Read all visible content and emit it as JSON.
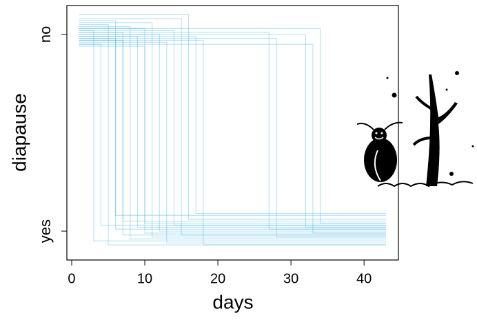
{
  "chart_data": {
    "type": "line",
    "xlabel": "days",
    "ylabel": "diapause",
    "xlim": [
      -0.66,
      44.7
    ],
    "ylim": [
      -0.147,
      1.147
    ],
    "xticks": [
      0,
      10,
      20,
      30,
      40
    ],
    "yticks": [
      {
        "value": 0,
        "label": "yes"
      },
      {
        "value": 1,
        "label": "no"
      }
    ],
    "color": "#1ba1d9",
    "line_opacity": 0.3,
    "series": [
      {
        "x": [
          1,
          3,
          3,
          43
        ],
        "values": [
          1.02,
          1.02,
          -0.05,
          -0.05
        ]
      },
      {
        "x": [
          1,
          4,
          4,
          43
        ],
        "values": [
          0.95,
          0.95,
          0.03,
          0.03
        ]
      },
      {
        "x": [
          1,
          5,
          5,
          43
        ],
        "values": [
          1.05,
          1.05,
          -0.07,
          -0.07
        ]
      },
      {
        "x": [
          1,
          6,
          6,
          43
        ],
        "values": [
          1.07,
          1.07,
          0.08,
          0.08
        ]
      },
      {
        "x": [
          1,
          6,
          6,
          43
        ],
        "values": [
          0.98,
          0.98,
          0.01,
          0.01
        ]
      },
      {
        "x": [
          1,
          7,
          7,
          43
        ],
        "values": [
          1.01,
          1.01,
          -0.02,
          -0.02
        ]
      },
      {
        "x": [
          1,
          7,
          7,
          43
        ],
        "values": [
          0.97,
          0.97,
          0.05,
          0.05
        ]
      },
      {
        "x": [
          1,
          8,
          8,
          43
        ],
        "values": [
          1.04,
          1.04,
          -0.04,
          -0.04
        ]
      },
      {
        "x": [
          1,
          9,
          9,
          43
        ],
        "values": [
          0.99,
          0.99,
          0.02,
          0.02
        ]
      },
      {
        "x": [
          1,
          10,
          10,
          43
        ],
        "values": [
          1.03,
          1.03,
          -0.01,
          -0.01
        ]
      },
      {
        "x": [
          1,
          10,
          10,
          43
        ],
        "values": [
          0.94,
          0.94,
          0.04,
          0.04
        ]
      },
      {
        "x": [
          1,
          11,
          11,
          43
        ],
        "values": [
          1.06,
          1.06,
          -0.03,
          -0.03
        ]
      },
      {
        "x": [
          1,
          12,
          12,
          43
        ],
        "values": [
          1.0,
          1.0,
          0.0,
          0.0
        ]
      },
      {
        "x": [
          1,
          13,
          13,
          43
        ],
        "values": [
          0.96,
          0.96,
          -0.06,
          -0.06
        ]
      },
      {
        "x": [
          1,
          14,
          14,
          43
        ],
        "values": [
          1.02,
          1.02,
          0.03,
          0.03
        ]
      },
      {
        "x": [
          1,
          15,
          15,
          43
        ],
        "values": [
          1.08,
          1.08,
          -0.02,
          -0.02
        ]
      },
      {
        "x": [
          1,
          16,
          16,
          43
        ],
        "values": [
          1.1,
          1.1,
          0.06,
          0.06
        ]
      },
      {
        "x": [
          1,
          17,
          17,
          43
        ],
        "values": [
          0.99,
          0.99,
          0.09,
          0.09
        ]
      },
      {
        "x": [
          1,
          18,
          18,
          43
        ],
        "values": [
          0.97,
          0.97,
          -0.07,
          -0.07
        ]
      },
      {
        "x": [
          1,
          27,
          27,
          43
        ],
        "values": [
          1.01,
          1.01,
          0.01,
          0.01
        ]
      },
      {
        "x": [
          1,
          28,
          28,
          43
        ],
        "values": [
          0.98,
          0.98,
          -0.03,
          -0.03
        ]
      },
      {
        "x": [
          1,
          32,
          32,
          43
        ],
        "values": [
          1.0,
          1.0,
          0.02,
          0.02
        ]
      },
      {
        "x": [
          1,
          33,
          33,
          43
        ],
        "values": [
          0.95,
          0.95,
          -0.01,
          -0.01
        ]
      },
      {
        "x": [
          1,
          34,
          34,
          43
        ],
        "values": [
          1.03,
          1.03,
          0.04,
          0.04
        ]
      }
    ]
  }
}
